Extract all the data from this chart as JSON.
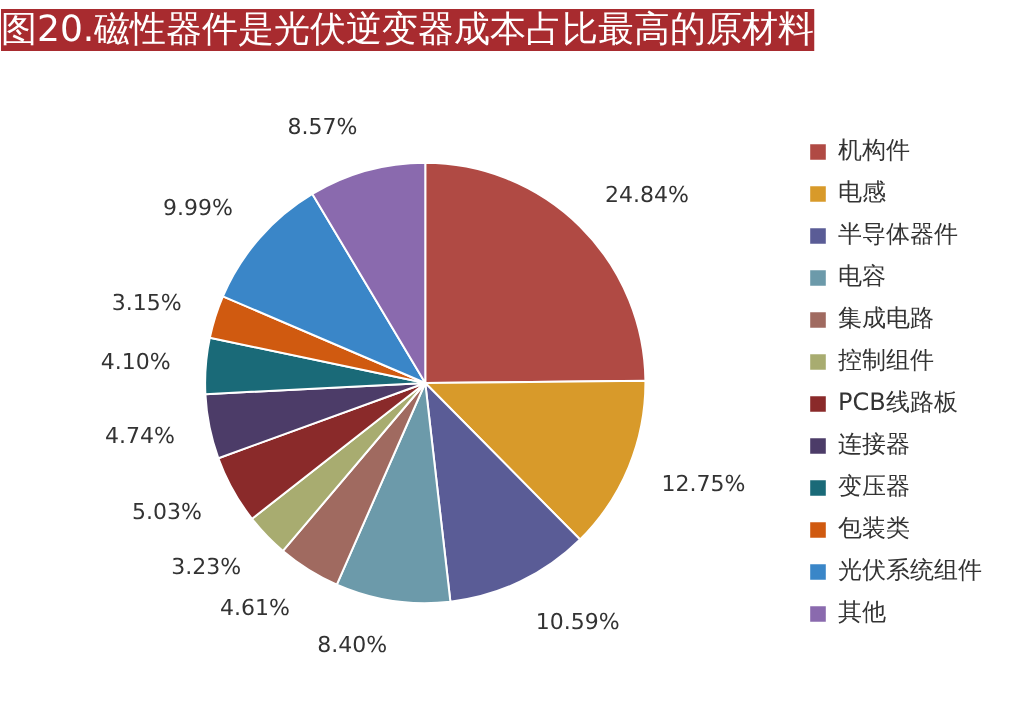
{
  "chart_data": {
    "type": "pie",
    "title": "图20.磁性器件是光伏逆变器成本占比最高的原材料",
    "categories": [
      "机构件",
      "电感",
      "半导体器件",
      "电容",
      "集成电路",
      "控制组件",
      "PCB线路板",
      "连接器",
      "变压器",
      "包装类",
      "光伏系统组件",
      "其他"
    ],
    "values": [
      24.84,
      12.75,
      10.59,
      8.4,
      4.61,
      3.23,
      5.03,
      4.74,
      4.1,
      3.15,
      9.99,
      8.57
    ],
    "value_labels": [
      "24.84%",
      "12.75%",
      "10.59%",
      "8.40%",
      "4.61%",
      "3.23%",
      "5.03%",
      "4.74%",
      "4.10%",
      "3.15%",
      "9.99%",
      "8.57%"
    ],
    "colors": [
      "#b04a44",
      "#d89a2a",
      "#5a5c96",
      "#6c9aaa",
      "#a06a60",
      "#a8ac70",
      "#8a2a2a",
      "#4c3c68",
      "#1a6a78",
      "#d05a10",
      "#3a86c8",
      "#8a6aae"
    ],
    "legend": "right"
  }
}
